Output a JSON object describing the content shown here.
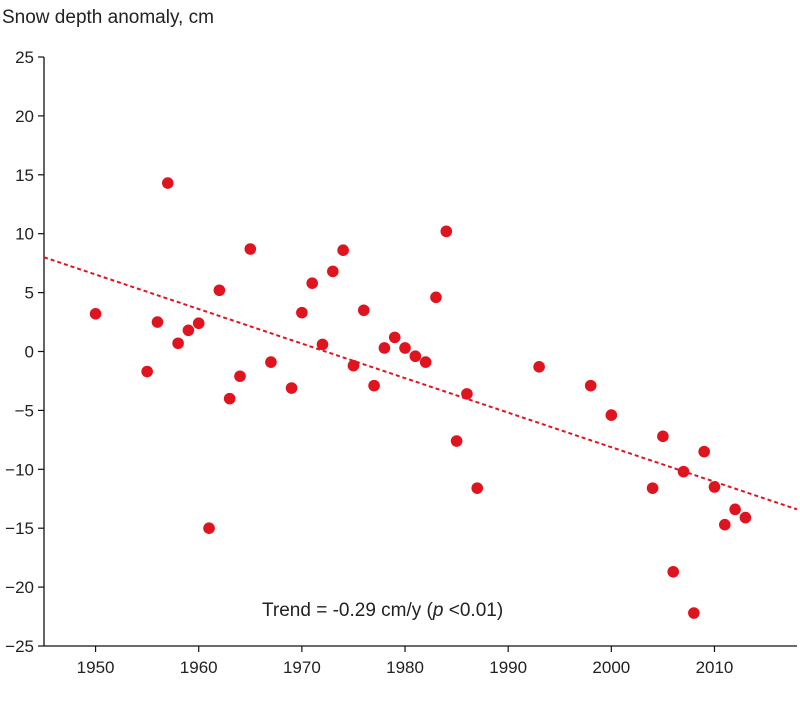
{
  "chart_data": {
    "type": "scatter",
    "title": "",
    "ylabel": "Snow depth anomaly, cm",
    "xlabel": "",
    "xlim": [
      1945,
      2018
    ],
    "ylim": [
      -25,
      25
    ],
    "xticks": [
      1950,
      1960,
      1970,
      1980,
      1990,
      2000,
      2010
    ],
    "yticks": [
      25,
      20,
      15,
      10,
      5,
      0,
      -5,
      -10,
      -15,
      -20,
      -25
    ],
    "grid": false,
    "point_color": "#e0141e",
    "trend_color": "#e0141e",
    "series": [
      {
        "name": "Snow depth anomaly",
        "points": [
          {
            "x": 1950,
            "y": 3.2
          },
          {
            "x": 1955,
            "y": -1.7
          },
          {
            "x": 1956,
            "y": 2.5
          },
          {
            "x": 1957,
            "y": 14.3
          },
          {
            "x": 1958,
            "y": 0.7
          },
          {
            "x": 1959,
            "y": 1.8
          },
          {
            "x": 1960,
            "y": 2.4
          },
          {
            "x": 1961,
            "y": -15.0
          },
          {
            "x": 1962,
            "y": 5.2
          },
          {
            "x": 1963,
            "y": -4.0
          },
          {
            "x": 1964,
            "y": -2.1
          },
          {
            "x": 1965,
            "y": 8.7
          },
          {
            "x": 1967,
            "y": -0.9
          },
          {
            "x": 1969,
            "y": -3.1
          },
          {
            "x": 1970,
            "y": 3.3
          },
          {
            "x": 1971,
            "y": 5.8
          },
          {
            "x": 1972,
            "y": 0.6
          },
          {
            "x": 1973,
            "y": 6.8
          },
          {
            "x": 1974,
            "y": 8.6
          },
          {
            "x": 1975,
            "y": -1.2
          },
          {
            "x": 1976,
            "y": 3.5
          },
          {
            "x": 1977,
            "y": -2.9
          },
          {
            "x": 1978,
            "y": 0.3
          },
          {
            "x": 1979,
            "y": 1.2
          },
          {
            "x": 1980,
            "y": 0.3
          },
          {
            "x": 1981,
            "y": -0.4
          },
          {
            "x": 1982,
            "y": -0.9
          },
          {
            "x": 1983,
            "y": 4.6
          },
          {
            "x": 1984,
            "y": 10.2
          },
          {
            "x": 1985,
            "y": -7.6
          },
          {
            "x": 1986,
            "y": -3.6
          },
          {
            "x": 1987,
            "y": -11.6
          },
          {
            "x": 1993,
            "y": -1.3
          },
          {
            "x": 1998,
            "y": -2.9
          },
          {
            "x": 2000,
            "y": -5.4
          },
          {
            "x": 2004,
            "y": -11.6
          },
          {
            "x": 2005,
            "y": -7.2
          },
          {
            "x": 2006,
            "y": -18.7
          },
          {
            "x": 2007,
            "y": -10.2
          },
          {
            "x": 2008,
            "y": -22.2
          },
          {
            "x": 2009,
            "y": -8.5
          },
          {
            "x": 2010,
            "y": -11.5
          },
          {
            "x": 2011,
            "y": -14.7
          },
          {
            "x": 2012,
            "y": -13.4
          },
          {
            "x": 2013,
            "y": -14.1
          }
        ]
      }
    ],
    "trend": {
      "name": "Linear trend",
      "x": [
        1945,
        2018
      ],
      "y": [
        8.0,
        -13.4
      ],
      "style": "dotted"
    },
    "annotation": "Trend = -0.29 cm/y (p <0.01)",
    "annotation_parts": {
      "prefix": "Trend = -0.29 cm/y (",
      "p": "p",
      "suffix": " <0.01)"
    }
  }
}
